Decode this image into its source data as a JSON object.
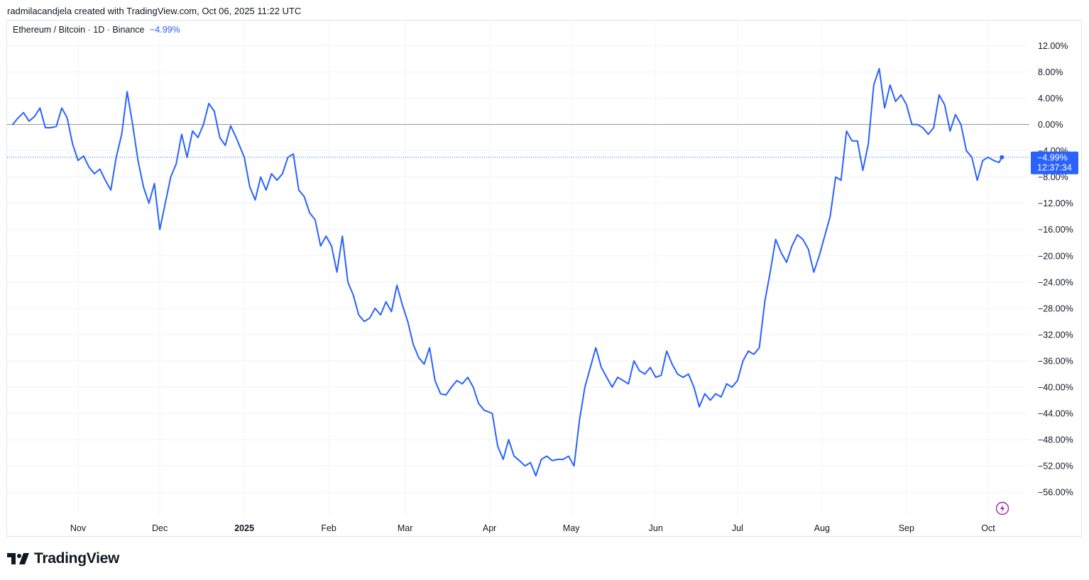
{
  "header": {
    "attribution": "radmilacandjela created with TradingView.com, Oct 06, 2025 11:22 UTC"
  },
  "legend": {
    "symbol": "Ethereum / Bitcoin · 1D · Binance",
    "change": "−4.99%"
  },
  "price_badge": {
    "value": "−4.99%",
    "countdown": "12:37:34"
  },
  "footer": {
    "brand": "TradingView"
  },
  "icons": {
    "logo": "tradingview-logo-icon",
    "flash": "lightning-icon"
  },
  "colors": {
    "line": "#2962ff",
    "badge": "#2962ff",
    "zero_line": "#9598a1",
    "grid": "#f0f3fa"
  },
  "chart_data": {
    "type": "line",
    "ylim": [
      -60,
      14
    ],
    "y_unit": "%",
    "grid": true,
    "last_value": -4.99,
    "y_ticks": [
      {
        "v": 12,
        "label": "12.00%"
      },
      {
        "v": 8,
        "label": "8.00%"
      },
      {
        "v": 4,
        "label": "4.00%"
      },
      {
        "v": 0,
        "label": "0.00%"
      },
      {
        "v": -4,
        "label": "−4.00%"
      },
      {
        "v": -8,
        "label": "−8.00%"
      },
      {
        "v": -12,
        "label": "−12.00%"
      },
      {
        "v": -16,
        "label": "−16.00%"
      },
      {
        "v": -20,
        "label": "−20.00%"
      },
      {
        "v": -24,
        "label": "−24.00%"
      },
      {
        "v": -28,
        "label": "−28.00%"
      },
      {
        "v": -32,
        "label": "−32.00%"
      },
      {
        "v": -36,
        "label": "−36.00%"
      },
      {
        "v": -40,
        "label": "−40.00%"
      },
      {
        "v": -44,
        "label": "−44.00%"
      },
      {
        "v": -48,
        "label": "−48.00%"
      },
      {
        "v": -52,
        "label": "−52.00%"
      },
      {
        "v": -56,
        "label": "−56.00%"
      }
    ],
    "x_ticks": [
      {
        "date": "2024-11-01",
        "label": "Nov",
        "bold": false
      },
      {
        "date": "2024-12-01",
        "label": "Dec",
        "bold": false
      },
      {
        "date": "2025-01-01",
        "label": "2025",
        "bold": true
      },
      {
        "date": "2025-02-01",
        "label": "Feb",
        "bold": false
      },
      {
        "date": "2025-03-01",
        "label": "Mar",
        "bold": false
      },
      {
        "date": "2025-04-01",
        "label": "Apr",
        "bold": false
      },
      {
        "date": "2025-05-01",
        "label": "May",
        "bold": false
      },
      {
        "date": "2025-06-01",
        "label": "Jun",
        "bold": false
      },
      {
        "date": "2025-07-01",
        "label": "Jul",
        "bold": false
      },
      {
        "date": "2025-08-01",
        "label": "Aug",
        "bold": false
      },
      {
        "date": "2025-09-01",
        "label": "Sep",
        "bold": false
      },
      {
        "date": "2025-10-01",
        "label": "Oct",
        "bold": false
      }
    ],
    "series": [
      {
        "points": [
          [
            "2024-10-08",
            0
          ],
          [
            "2024-10-10",
            1
          ],
          [
            "2024-10-12",
            1.8
          ],
          [
            "2024-10-14",
            0.5
          ],
          [
            "2024-10-16",
            1.2
          ],
          [
            "2024-10-18",
            2.5
          ],
          [
            "2024-10-20",
            -0.5
          ],
          [
            "2024-10-22",
            -0.5
          ],
          [
            "2024-10-24",
            -0.3
          ],
          [
            "2024-10-26",
            2.5
          ],
          [
            "2024-10-28",
            1
          ],
          [
            "2024-10-30",
            -3
          ],
          [
            "2024-11-01",
            -5.5
          ],
          [
            "2024-11-03",
            -4.8
          ],
          [
            "2024-11-05",
            -6.5
          ],
          [
            "2024-11-07",
            -7.5
          ],
          [
            "2024-11-09",
            -6.8
          ],
          [
            "2024-11-11",
            -8.5
          ],
          [
            "2024-11-13",
            -10
          ],
          [
            "2024-11-15",
            -5
          ],
          [
            "2024-11-17",
            -1.5
          ],
          [
            "2024-11-19",
            5
          ],
          [
            "2024-11-21",
            0
          ],
          [
            "2024-11-23",
            -5.5
          ],
          [
            "2024-11-25",
            -9.5
          ],
          [
            "2024-11-27",
            -12
          ],
          [
            "2024-11-29",
            -9
          ],
          [
            "2024-12-01",
            -16
          ],
          [
            "2024-12-03",
            -12
          ],
          [
            "2024-12-05",
            -8
          ],
          [
            "2024-12-07",
            -6
          ],
          [
            "2024-12-09",
            -1.5
          ],
          [
            "2024-12-11",
            -5
          ],
          [
            "2024-12-13",
            -1
          ],
          [
            "2024-12-15",
            -2
          ],
          [
            "2024-12-17",
            0
          ],
          [
            "2024-12-19",
            3.2
          ],
          [
            "2024-12-21",
            2
          ],
          [
            "2024-12-23",
            -2
          ],
          [
            "2024-12-25",
            -3.2
          ],
          [
            "2024-12-27",
            -0.2
          ],
          [
            "2024-12-29",
            -2
          ],
          [
            "2025-01-01",
            -5
          ],
          [
            "2025-01-03",
            -9.5
          ],
          [
            "2025-01-05",
            -11.5
          ],
          [
            "2025-01-07",
            -8
          ],
          [
            "2025-01-09",
            -10
          ],
          [
            "2025-01-11",
            -7.5
          ],
          [
            "2025-01-13",
            -8.5
          ],
          [
            "2025-01-15",
            -7.5
          ],
          [
            "2025-01-17",
            -5
          ],
          [
            "2025-01-19",
            -4.5
          ],
          [
            "2025-01-21",
            -10
          ],
          [
            "2025-01-23",
            -11
          ],
          [
            "2025-01-25",
            -13.5
          ],
          [
            "2025-01-27",
            -14.5
          ],
          [
            "2025-01-29",
            -18.5
          ],
          [
            "2025-01-31",
            -17
          ],
          [
            "2025-02-02",
            -18.5
          ],
          [
            "2025-02-04",
            -22.5
          ],
          [
            "2025-02-06",
            -17
          ],
          [
            "2025-02-08",
            -24
          ],
          [
            "2025-02-10",
            -26
          ],
          [
            "2025-02-12",
            -29
          ],
          [
            "2025-02-14",
            -30
          ],
          [
            "2025-02-16",
            -29.5
          ],
          [
            "2025-02-18",
            -28
          ],
          [
            "2025-02-20",
            -29
          ],
          [
            "2025-02-22",
            -27
          ],
          [
            "2025-02-24",
            -28.5
          ],
          [
            "2025-02-26",
            -24.5
          ],
          [
            "2025-02-28",
            -27.5
          ],
          [
            "2025-03-02",
            -30
          ],
          [
            "2025-03-04",
            -33.5
          ],
          [
            "2025-03-06",
            -35.5
          ],
          [
            "2025-03-08",
            -36.5
          ],
          [
            "2025-03-10",
            -34
          ],
          [
            "2025-03-12",
            -39
          ],
          [
            "2025-03-14",
            -41
          ],
          [
            "2025-03-16",
            -41.2
          ],
          [
            "2025-03-18",
            -40
          ],
          [
            "2025-03-20",
            -39
          ],
          [
            "2025-03-22",
            -39.5
          ],
          [
            "2025-03-24",
            -38.5
          ],
          [
            "2025-03-26",
            -40
          ],
          [
            "2025-03-28",
            -42.5
          ],
          [
            "2025-03-30",
            -43.5
          ],
          [
            "2025-04-02",
            -44
          ],
          [
            "2025-04-04",
            -49
          ],
          [
            "2025-04-06",
            -51
          ],
          [
            "2025-04-08",
            -48
          ],
          [
            "2025-04-10",
            -50.5
          ],
          [
            "2025-04-12",
            -51.2
          ],
          [
            "2025-04-14",
            -52
          ],
          [
            "2025-04-16",
            -51.5
          ],
          [
            "2025-04-18",
            -53.5
          ],
          [
            "2025-04-20",
            -51
          ],
          [
            "2025-04-22",
            -50.5
          ],
          [
            "2025-04-24",
            -51.2
          ],
          [
            "2025-04-26",
            -51
          ],
          [
            "2025-04-28",
            -51
          ],
          [
            "2025-04-30",
            -50.5
          ],
          [
            "2025-05-02",
            -52
          ],
          [
            "2025-05-04",
            -45
          ],
          [
            "2025-05-06",
            -40
          ],
          [
            "2025-05-08",
            -37
          ],
          [
            "2025-05-10",
            -34
          ],
          [
            "2025-05-12",
            -37
          ],
          [
            "2025-05-14",
            -38.5
          ],
          [
            "2025-05-16",
            -40
          ],
          [
            "2025-05-18",
            -38.5
          ],
          [
            "2025-05-20",
            -39
          ],
          [
            "2025-05-22",
            -39.5
          ],
          [
            "2025-05-24",
            -36
          ],
          [
            "2025-05-26",
            -37.5
          ],
          [
            "2025-05-28",
            -38
          ],
          [
            "2025-05-30",
            -37
          ],
          [
            "2025-06-01",
            -38.5
          ],
          [
            "2025-06-03",
            -38.2
          ],
          [
            "2025-06-05",
            -34.5
          ],
          [
            "2025-06-07",
            -36.5
          ],
          [
            "2025-06-09",
            -38
          ],
          [
            "2025-06-11",
            -38.5
          ],
          [
            "2025-06-13",
            -38
          ],
          [
            "2025-06-15",
            -40
          ],
          [
            "2025-06-17",
            -43
          ],
          [
            "2025-06-19",
            -41
          ],
          [
            "2025-06-21",
            -42
          ],
          [
            "2025-06-23",
            -41
          ],
          [
            "2025-06-25",
            -41.5
          ],
          [
            "2025-06-27",
            -39.5
          ],
          [
            "2025-06-29",
            -40
          ],
          [
            "2025-07-01",
            -39
          ],
          [
            "2025-07-03",
            -36
          ],
          [
            "2025-07-05",
            -34.5
          ],
          [
            "2025-07-07",
            -35
          ],
          [
            "2025-07-09",
            -34
          ],
          [
            "2025-07-11",
            -27
          ],
          [
            "2025-07-13",
            -22.5
          ],
          [
            "2025-07-15",
            -17.5
          ],
          [
            "2025-07-17",
            -19.5
          ],
          [
            "2025-07-19",
            -21
          ],
          [
            "2025-07-21",
            -18.5
          ],
          [
            "2025-07-23",
            -16.8
          ],
          [
            "2025-07-25",
            -17.5
          ],
          [
            "2025-07-27",
            -19
          ],
          [
            "2025-07-29",
            -22.5
          ],
          [
            "2025-07-31",
            -20
          ],
          [
            "2025-08-02",
            -17
          ],
          [
            "2025-08-04",
            -14
          ],
          [
            "2025-08-06",
            -8
          ],
          [
            "2025-08-08",
            -8.5
          ],
          [
            "2025-08-10",
            -1
          ],
          [
            "2025-08-12",
            -2.5
          ],
          [
            "2025-08-14",
            -2.5
          ],
          [
            "2025-08-16",
            -7
          ],
          [
            "2025-08-18",
            -3
          ],
          [
            "2025-08-20",
            6
          ],
          [
            "2025-08-22",
            8.5
          ],
          [
            "2025-08-24",
            2.5
          ],
          [
            "2025-08-26",
            6
          ],
          [
            "2025-08-28",
            3.5
          ],
          [
            "2025-08-30",
            4.5
          ],
          [
            "2025-09-01",
            3
          ],
          [
            "2025-09-03",
            0
          ],
          [
            "2025-09-05",
            0
          ],
          [
            "2025-09-07",
            -0.5
          ],
          [
            "2025-09-09",
            -1.5
          ],
          [
            "2025-09-11",
            -0.5
          ],
          [
            "2025-09-13",
            4.5
          ],
          [
            "2025-09-15",
            3
          ],
          [
            "2025-09-17",
            -1
          ],
          [
            "2025-09-19",
            1.5
          ],
          [
            "2025-09-21",
            0
          ],
          [
            "2025-09-23",
            -4
          ],
          [
            "2025-09-25",
            -5
          ],
          [
            "2025-09-27",
            -8.5
          ],
          [
            "2025-09-29",
            -5.5
          ],
          [
            "2025-10-01",
            -5
          ],
          [
            "2025-10-03",
            -5.5
          ],
          [
            "2025-10-05",
            -5.8
          ],
          [
            "2025-10-06",
            -4.99
          ]
        ]
      }
    ]
  }
}
